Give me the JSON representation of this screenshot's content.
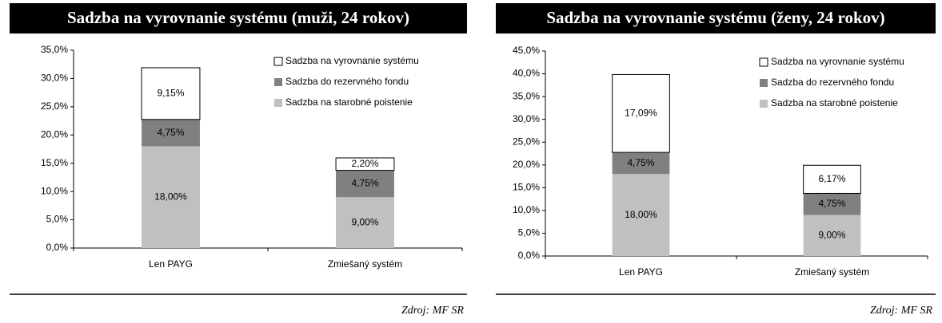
{
  "chart_data": [
    {
      "type": "bar",
      "stacked": true,
      "title": "Sadzba na vyrovnanie systému (muži, 24 rokov)",
      "source": "Zdroj: MF SR",
      "categories": [
        "Len PAYG",
        "Zmiešaný systém"
      ],
      "series": [
        {
          "name": "Sadzba na starobné poistenie",
          "color": "#c0c0c0",
          "values": [
            18,
            9
          ],
          "value_labels": [
            "18,00%",
            "9,00%"
          ]
        },
        {
          "name": "Sadzba do rezervného fondu",
          "color": "#808080",
          "values": [
            4.75,
            4.75
          ],
          "value_labels": [
            "4,75%",
            "4,75%"
          ]
        },
        {
          "name": "Sadzba na vyrovnanie systému",
          "color": "#ffffff",
          "values": [
            9.15,
            2.2
          ],
          "value_labels": [
            "9,15%",
            "2,20%"
          ]
        }
      ],
      "ylim": [
        0,
        35
      ],
      "yticks": [
        {
          "value": 0,
          "label": "0,0%"
        },
        {
          "value": 5,
          "label": "5,0%"
        },
        {
          "value": 10,
          "label": "10,0%"
        },
        {
          "value": 15,
          "label": "15,0%"
        },
        {
          "value": 20,
          "label": "20,0%"
        },
        {
          "value": 25,
          "label": "25,0%"
        },
        {
          "value": 30,
          "label": "30,0%"
        },
        {
          "value": 35,
          "label": "35,0%"
        }
      ],
      "legend": "upper right"
    },
    {
      "type": "bar",
      "stacked": true,
      "title": "Sadzba na vyrovnanie systému (ženy, 24 rokov)",
      "source": "Zdroj: MF SR",
      "categories": [
        "Len PAYG",
        "Zmiešaný systém"
      ],
      "series": [
        {
          "name": "Sadzba na starobné poistenie",
          "color": "#c0c0c0",
          "values": [
            18,
            9
          ],
          "value_labels": [
            "18,00%",
            "9,00%"
          ]
        },
        {
          "name": "Sadzba do rezervného fondu",
          "color": "#808080",
          "values": [
            4.75,
            4.75
          ],
          "value_labels": [
            "4,75%",
            "4,75%"
          ]
        },
        {
          "name": "Sadzba na vyrovnanie systému",
          "color": "#ffffff",
          "values": [
            17.09,
            6.17
          ],
          "value_labels": [
            "17,09%",
            "6,17%"
          ]
        }
      ],
      "ylim": [
        0,
        45
      ],
      "yticks": [
        {
          "value": 0,
          "label": "0,0%"
        },
        {
          "value": 5,
          "label": "5,0%"
        },
        {
          "value": 10,
          "label": "10,0%"
        },
        {
          "value": 15,
          "label": "15,0%"
        },
        {
          "value": 20,
          "label": "20,0%"
        },
        {
          "value": 25,
          "label": "25,0%"
        },
        {
          "value": 30,
          "label": "30,0%"
        },
        {
          "value": 35,
          "label": "35,0%"
        },
        {
          "value": 40,
          "label": "40,0%"
        },
        {
          "value": 45,
          "label": "45,0%"
        }
      ],
      "legend": "upper right"
    }
  ]
}
